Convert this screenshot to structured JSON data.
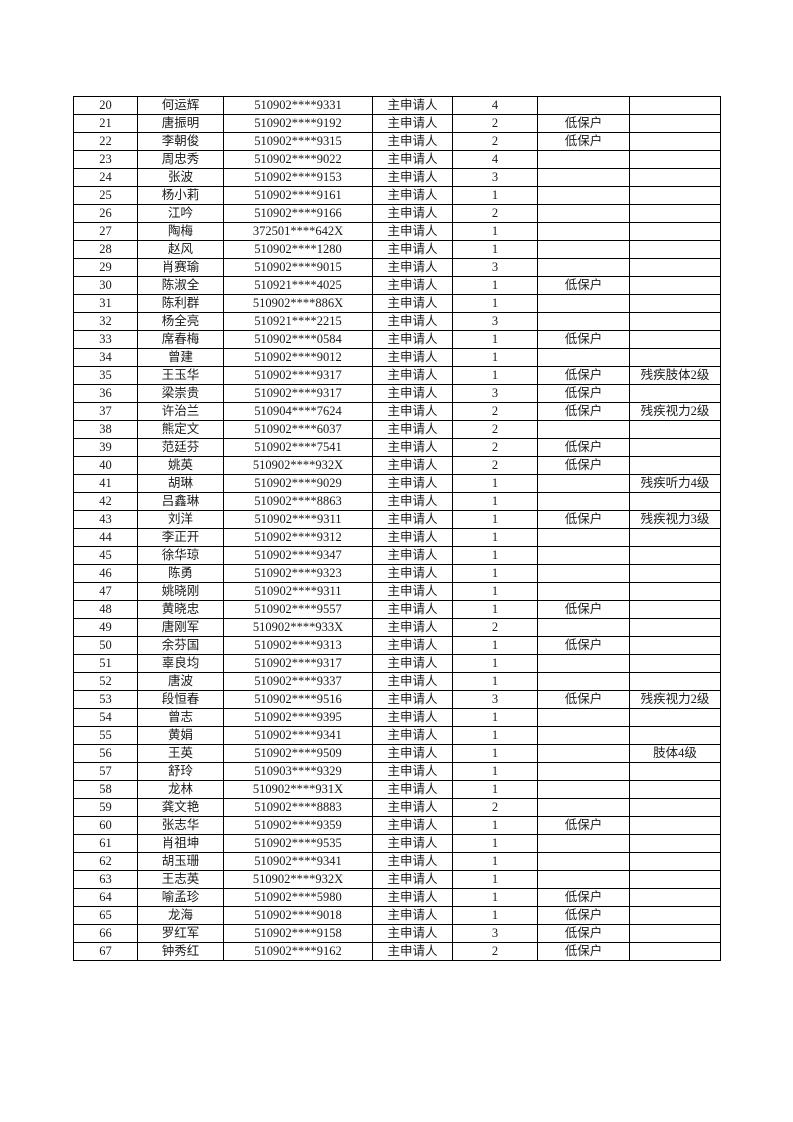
{
  "page": {
    "background_color": "#ffffff",
    "text_color": "#1a1a1a",
    "border_color": "#000000"
  },
  "table": {
    "columns": [
      "no",
      "name",
      "id_number",
      "applicant_type",
      "count",
      "status",
      "note"
    ],
    "rows": [
      {
        "no": "20",
        "name": "何运辉",
        "id_number": "510902****9331",
        "applicant_type": "主申请人",
        "count": "4",
        "status": "",
        "note": ""
      },
      {
        "no": "21",
        "name": "唐振明",
        "id_number": "510902****9192",
        "applicant_type": "主申请人",
        "count": "2",
        "status": "低保户",
        "note": ""
      },
      {
        "no": "22",
        "name": "李朝俊",
        "id_number": "510902****9315",
        "applicant_type": "主申请人",
        "count": "2",
        "status": "低保户",
        "note": ""
      },
      {
        "no": "23",
        "name": "周忠秀",
        "id_number": "510902****9022",
        "applicant_type": "主申请人",
        "count": "4",
        "status": "",
        "note": ""
      },
      {
        "no": "24",
        "name": "张波",
        "id_number": "510902****9153",
        "applicant_type": "主申请人",
        "count": "3",
        "status": "",
        "note": ""
      },
      {
        "no": "25",
        "name": "杨小莉",
        "id_number": "510902****9161",
        "applicant_type": "主申请人",
        "count": "1",
        "status": "",
        "note": ""
      },
      {
        "no": "26",
        "name": "江吟",
        "id_number": "510902****9166",
        "applicant_type": "主申请人",
        "count": "2",
        "status": "",
        "note": ""
      },
      {
        "no": "27",
        "name": "陶梅",
        "id_number": "372501****642X",
        "applicant_type": "主申请人",
        "count": "1",
        "status": "",
        "note": ""
      },
      {
        "no": "28",
        "name": "赵风",
        "id_number": "510902****1280",
        "applicant_type": "主申请人",
        "count": "1",
        "status": "",
        "note": ""
      },
      {
        "no": "29",
        "name": "肖赛瑜",
        "id_number": "510902****9015",
        "applicant_type": "主申请人",
        "count": "3",
        "status": "",
        "note": ""
      },
      {
        "no": "30",
        "name": "陈淑全",
        "id_number": "510921****4025",
        "applicant_type": "主申请人",
        "count": "1",
        "status": "低保户",
        "note": ""
      },
      {
        "no": "31",
        "name": "陈利群",
        "id_number": "510902****886X",
        "applicant_type": "主申请人",
        "count": "1",
        "status": "",
        "note": ""
      },
      {
        "no": "32",
        "name": "杨全亮",
        "id_number": "510921****2215",
        "applicant_type": "主申请人",
        "count": "3",
        "status": "",
        "note": ""
      },
      {
        "no": "33",
        "name": "席春梅",
        "id_number": "510902****0584",
        "applicant_type": "主申请人",
        "count": "1",
        "status": "低保户",
        "note": ""
      },
      {
        "no": "34",
        "name": "曾建",
        "id_number": "510902****9012",
        "applicant_type": "主申请人",
        "count": "1",
        "status": "",
        "note": ""
      },
      {
        "no": "35",
        "name": "王玉华",
        "id_number": "510902****9317",
        "applicant_type": "主申请人",
        "count": "1",
        "status": "低保户",
        "note": "残疾肢体2级"
      },
      {
        "no": "36",
        "name": "梁崇贵",
        "id_number": "510902****9317",
        "applicant_type": "主申请人",
        "count": "3",
        "status": "低保户",
        "note": ""
      },
      {
        "no": "37",
        "name": "许治兰",
        "id_number": "510904****7624",
        "applicant_type": "主申请人",
        "count": "2",
        "status": "低保户",
        "note": "残疾视力2级"
      },
      {
        "no": "38",
        "name": "熊定文",
        "id_number": "510902****6037",
        "applicant_type": "主申请人",
        "count": "2",
        "status": "",
        "note": ""
      },
      {
        "no": "39",
        "name": "范廷芬",
        "id_number": "510902****7541",
        "applicant_type": "主申请人",
        "count": "2",
        "status": "低保户",
        "note": ""
      },
      {
        "no": "40",
        "name": "姚英",
        "id_number": "510902****932X",
        "applicant_type": "主申请人",
        "count": "2",
        "status": "低保户",
        "note": ""
      },
      {
        "no": "41",
        "name": "胡琳",
        "id_number": "510902****9029",
        "applicant_type": "主申请人",
        "count": "1",
        "status": "",
        "note": "残疾听力4级"
      },
      {
        "no": "42",
        "name": "吕鑫琳",
        "id_number": "510902****8863",
        "applicant_type": "主申请人",
        "count": "1",
        "status": "",
        "note": ""
      },
      {
        "no": "43",
        "name": "刘洋",
        "id_number": "510902****9311",
        "applicant_type": "主申请人",
        "count": "1",
        "status": "低保户",
        "note": "残疾视力3级"
      },
      {
        "no": "44",
        "name": "李正开",
        "id_number": "510902****9312",
        "applicant_type": "主申请人",
        "count": "1",
        "status": "",
        "note": ""
      },
      {
        "no": "45",
        "name": "徐华琼",
        "id_number": "510902****9347",
        "applicant_type": "主申请人",
        "count": "1",
        "status": "",
        "note": ""
      },
      {
        "no": "46",
        "name": "陈勇",
        "id_number": "510902****9323",
        "applicant_type": "主申请人",
        "count": "1",
        "status": "",
        "note": ""
      },
      {
        "no": "47",
        "name": "姚晓刚",
        "id_number": "510902****9311",
        "applicant_type": "主申请人",
        "count": "1",
        "status": "",
        "note": ""
      },
      {
        "no": "48",
        "name": "黄晓忠",
        "id_number": "510902****9557",
        "applicant_type": "主申请人",
        "count": "1",
        "status": "低保户",
        "note": ""
      },
      {
        "no": "49",
        "name": "唐刚军",
        "id_number": "510902****933X",
        "applicant_type": "主申请人",
        "count": "2",
        "status": "",
        "note": ""
      },
      {
        "no": "50",
        "name": "余芬国",
        "id_number": "510902****9313",
        "applicant_type": "主申请人",
        "count": "1",
        "status": "低保户",
        "note": ""
      },
      {
        "no": "51",
        "name": "辜良均",
        "id_number": "510902****9317",
        "applicant_type": "主申请人",
        "count": "1",
        "status": "",
        "note": ""
      },
      {
        "no": "52",
        "name": "唐波",
        "id_number": "510902****9337",
        "applicant_type": "主申请人",
        "count": "1",
        "status": "",
        "note": ""
      },
      {
        "no": "53",
        "name": "段恒春",
        "id_number": "510902****9516",
        "applicant_type": "主申请人",
        "count": "3",
        "status": "低保户",
        "note": "残疾视力2级"
      },
      {
        "no": "54",
        "name": "曾志",
        "id_number": "510902****9395",
        "applicant_type": "主申请人",
        "count": "1",
        "status": "",
        "note": ""
      },
      {
        "no": "55",
        "name": "黄娟",
        "id_number": "510902****9341",
        "applicant_type": "主申请人",
        "count": "1",
        "status": "",
        "note": ""
      },
      {
        "no": "56",
        "name": "王英",
        "id_number": "510902****9509",
        "applicant_type": "主申请人",
        "count": "1",
        "status": "",
        "note": "肢体4级"
      },
      {
        "no": "57",
        "name": "舒玲",
        "id_number": "510903****9329",
        "applicant_type": "主申请人",
        "count": "1",
        "status": "",
        "note": ""
      },
      {
        "no": "58",
        "name": "龙林",
        "id_number": "510902****931X",
        "applicant_type": "主申请人",
        "count": "1",
        "status": "",
        "note": ""
      },
      {
        "no": "59",
        "name": "龚文艳",
        "id_number": "510902****8883",
        "applicant_type": "主申请人",
        "count": "2",
        "status": "",
        "note": ""
      },
      {
        "no": "60",
        "name": "张志华",
        "id_number": "510902****9359",
        "applicant_type": "主申请人",
        "count": "1",
        "status": "低保户",
        "note": ""
      },
      {
        "no": "61",
        "name": "肖祖坤",
        "id_number": "510902****9535",
        "applicant_type": "主申请人",
        "count": "1",
        "status": "",
        "note": ""
      },
      {
        "no": "62",
        "name": "胡玉珊",
        "id_number": "510902****9341",
        "applicant_type": "主申请人",
        "count": "1",
        "status": "",
        "note": ""
      },
      {
        "no": "63",
        "name": "王志英",
        "id_number": "510902****932X",
        "applicant_type": "主申请人",
        "count": "1",
        "status": "",
        "note": ""
      },
      {
        "no": "64",
        "name": "喻孟珍",
        "id_number": "510902****5980",
        "applicant_type": "主申请人",
        "count": "1",
        "status": "低保户",
        "note": ""
      },
      {
        "no": "65",
        "name": "龙海",
        "id_number": "510902****9018",
        "applicant_type": "主申请人",
        "count": "1",
        "status": "低保户",
        "note": ""
      },
      {
        "no": "66",
        "name": "罗红军",
        "id_number": "510902****9158",
        "applicant_type": "主申请人",
        "count": "3",
        "status": "低保户",
        "note": ""
      },
      {
        "no": "67",
        "name": "钟秀红",
        "id_number": "510902****9162",
        "applicant_type": "主申请人",
        "count": "2",
        "status": "低保户",
        "note": ""
      }
    ]
  }
}
